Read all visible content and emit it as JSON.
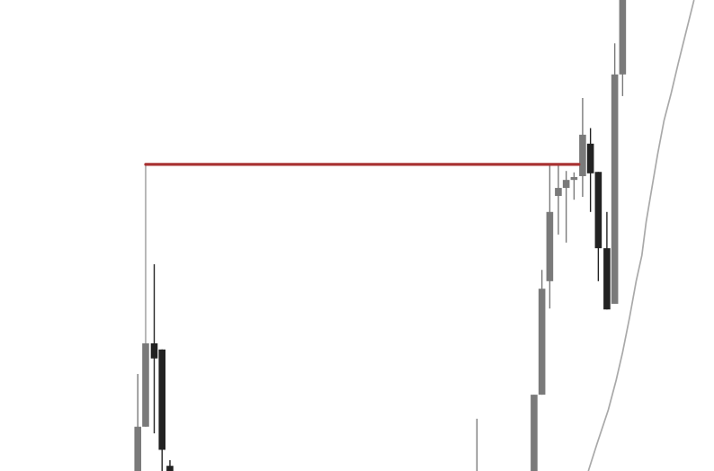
{
  "chart_data": {
    "type": "candlestick",
    "title": "",
    "xlabel": "",
    "ylabel": "",
    "xlim": [
      0,
      100
    ],
    "ylim": [
      0,
      100
    ],
    "grid": false,
    "legend": "none",
    "colors": {
      "bullish": "#7a7a7a",
      "bearish": "#222222",
      "moving_average": "#a9a9a9",
      "level_line": "#a83232",
      "connector": "#8a8a8a"
    },
    "candles": [
      {
        "x": 19.3,
        "open": 0.0,
        "close": 9.4,
        "high": 20.6,
        "low": 0.0,
        "dir": "up"
      },
      {
        "x": 20.4,
        "open": 9.4,
        "close": 27.1,
        "high": 27.1,
        "low": 9.4,
        "dir": "up"
      },
      {
        "x": 21.6,
        "open": 27.1,
        "close": 23.9,
        "high": 43.9,
        "low": 8.0,
        "dir": "down"
      },
      {
        "x": 22.7,
        "open": 25.8,
        "close": 4.5,
        "high": 25.8,
        "low": 0.0,
        "dir": "down"
      },
      {
        "x": 23.8,
        "open": 1.1,
        "close": 0.0,
        "high": 2.3,
        "low": 0.0,
        "dir": "down"
      },
      {
        "x": 66.8,
        "open": 0.0,
        "close": 0.0,
        "high": 11.1,
        "low": 0.0,
        "dir": "up"
      },
      {
        "x": 74.8,
        "open": 0.0,
        "close": 16.2,
        "high": 16.2,
        "low": 0.0,
        "dir": "up"
      },
      {
        "x": 75.9,
        "open": 16.2,
        "close": 38.7,
        "high": 42.7,
        "low": 16.2,
        "dir": "up"
      },
      {
        "x": 77.0,
        "open": 40.3,
        "close": 55.0,
        "high": 65.1,
        "low": 34.5,
        "dir": "up"
      },
      {
        "x": 78.2,
        "open": 58.4,
        "close": 60.1,
        "high": 65.1,
        "low": 50.2,
        "dir": "up"
      },
      {
        "x": 79.3,
        "open": 60.1,
        "close": 61.8,
        "high": 63.7,
        "low": 48.5,
        "dir": "up"
      },
      {
        "x": 80.4,
        "open": 61.8,
        "close": 62.4,
        "high": 63.4,
        "low": 57.6,
        "dir": "up"
      },
      {
        "x": 81.6,
        "open": 62.6,
        "close": 71.4,
        "high": 79.2,
        "low": 58.2,
        "dir": "up"
      },
      {
        "x": 82.7,
        "open": 69.5,
        "close": 63.2,
        "high": 72.8,
        "low": 55.0,
        "dir": "down"
      },
      {
        "x": 83.8,
        "open": 63.5,
        "close": 47.3,
        "high": 63.5,
        "low": 40.3,
        "dir": "down"
      },
      {
        "x": 85.0,
        "open": 47.3,
        "close": 34.3,
        "high": 55.0,
        "low": 34.3,
        "dir": "down"
      },
      {
        "x": 86.1,
        "open": 35.5,
        "close": 84.2,
        "high": 90.8,
        "low": 35.5,
        "dir": "up"
      },
      {
        "x": 87.2,
        "open": 84.2,
        "close": 100.0,
        "high": 100.0,
        "low": 79.6,
        "dir": "up"
      }
    ],
    "moving_average": {
      "x": [
        82.4,
        83.6,
        85.2,
        86.3,
        87.2,
        88.2,
        89.1,
        89.9,
        90.5,
        91.3,
        92.1,
        93.0,
        94.0,
        95.0,
        96.0,
        97.2
      ],
      "y": [
        0.0,
        5.7,
        13.0,
        19.3,
        25.2,
        32.8,
        40.3,
        45.8,
        52.9,
        60.1,
        67.2,
        74.4,
        80.2,
        86.6,
        92.7,
        100.0
      ]
    },
    "level_line": {
      "y": 65.1,
      "x_start": 20.4,
      "x_end": 81.1
    },
    "connector": {
      "x": 20.4,
      "y_top": 65.1,
      "y_bottom": 27.1
    }
  }
}
